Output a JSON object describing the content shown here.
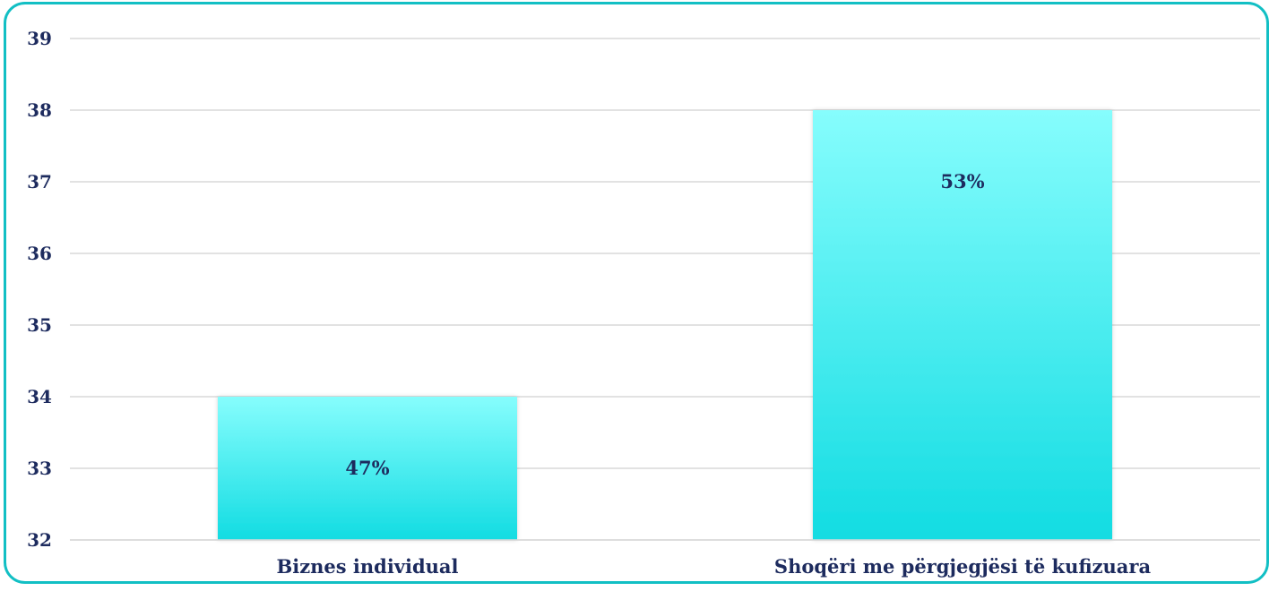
{
  "chart_data": {
    "type": "bar",
    "categories": [
      "Biznes individual",
      "Shoqëri me përgjegjësi të kufizuara"
    ],
    "values": [
      34,
      38
    ],
    "data_labels": [
      "47%",
      "53%"
    ],
    "title": "",
    "xlabel": "",
    "ylabel": "",
    "ylim": [
      32,
      39
    ],
    "yticks": [
      "32",
      "33",
      "34",
      "35",
      "36",
      "37",
      "38",
      "39"
    ],
    "grid": true,
    "legend": "none",
    "colors": {
      "bar_top": "#86fdfd",
      "bar_bottom": "#12dce2",
      "text": "#1d2b5e",
      "grid": "#d9d9d9",
      "frame": "#12bfc4"
    }
  }
}
